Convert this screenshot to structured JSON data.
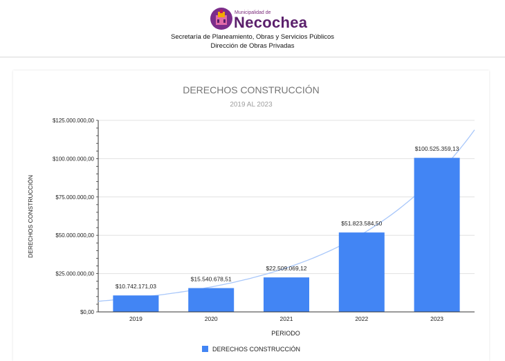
{
  "header": {
    "logo_small": "Municipalidad de",
    "logo_name": "Necochea",
    "line1": "Secretaría de Planeamiento, Obras y Servicios Públicos",
    "line2": "Dirección de Obras Privadas"
  },
  "colors": {
    "bar": "#4285f4",
    "trend": "#a8c7fa",
    "brand": "#5a1f6b"
  },
  "chart_data": {
    "type": "bar",
    "title": "DERECHOS CONSTRUCCIÓN",
    "subtitle": "2019 AL 2023",
    "xlabel": "PERIODO",
    "ylabel": "DERECHOS CONSTRUCCIÓN",
    "categories": [
      "2019",
      "2020",
      "2021",
      "2022",
      "2023"
    ],
    "series": [
      {
        "name": "DERECHOS CONSTRUCCIÓN",
        "values": [
          10742171.03,
          15540678.51,
          22509069.12,
          51823584.5,
          100525359.13
        ],
        "labels": [
          "$10.742.171,03",
          "$15.540.678,51",
          "$22.509.069,12",
          "$51.823.584,50",
          "$100.525.359,13"
        ]
      }
    ],
    "ylim": [
      0,
      125000000
    ],
    "yticks": [
      0,
      25000000,
      50000000,
      75000000,
      100000000,
      125000000
    ],
    "ytick_labels": [
      "$0,00",
      "$25.000.000,00",
      "$50.000.000,00",
      "$75.000.000,00",
      "$100.000.000,00",
      "$125.000.000,00"
    ],
    "trendline": "exponential",
    "grid": true,
    "legend": "bottom"
  }
}
